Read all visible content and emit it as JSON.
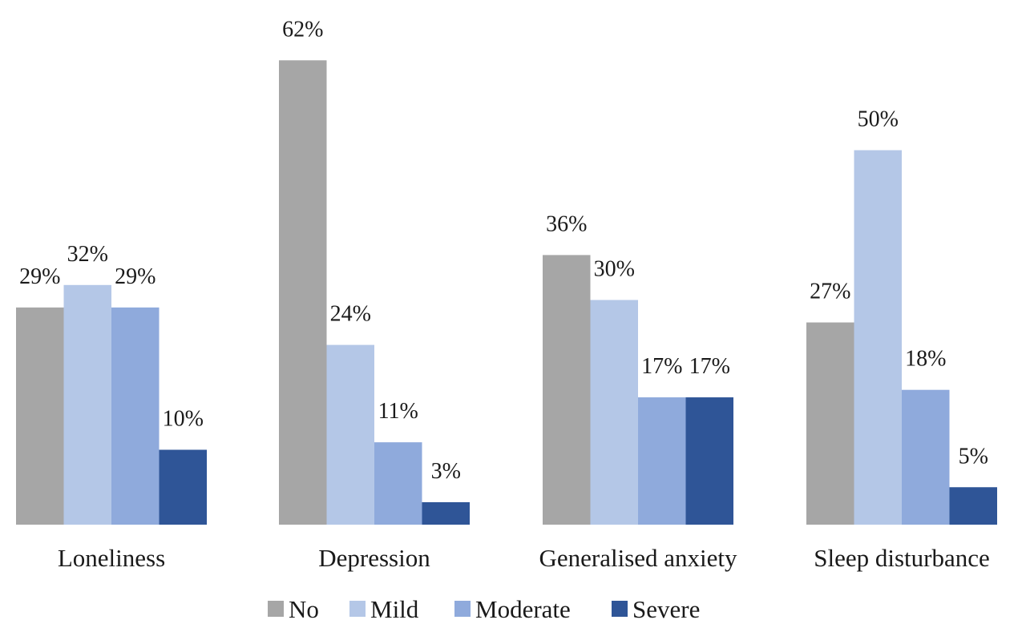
{
  "chart_data": {
    "type": "bar",
    "title": "",
    "xlabel": "",
    "ylabel": "",
    "ylim": [
      0,
      65
    ],
    "grid": false,
    "legend_position": "bottom",
    "categories": [
      "Loneliness",
      "Depression",
      "Generalised anxiety",
      "Sleep disturbance"
    ],
    "series": [
      {
        "name": "No",
        "color": "#a6a6a6",
        "values": [
          29,
          62,
          36,
          27
        ],
        "labels": [
          "29%",
          "62%",
          "36%",
          "27%"
        ]
      },
      {
        "name": "Mild",
        "color": "#b4c7e7",
        "values": [
          32,
          24,
          30,
          50
        ],
        "labels": [
          "32%",
          "24%",
          "30%",
          "50%"
        ]
      },
      {
        "name": "Moderate",
        "color": "#8faadc",
        "values": [
          29,
          11,
          17,
          18
        ],
        "labels": [
          "29%",
          "11%",
          "17%",
          "18%"
        ]
      },
      {
        "name": "Severe",
        "color": "#2f5597",
        "values": [
          10,
          3,
          17,
          5
        ],
        "labels": [
          "10%",
          "3%",
          "17%",
          "5%"
        ]
      }
    ]
  }
}
